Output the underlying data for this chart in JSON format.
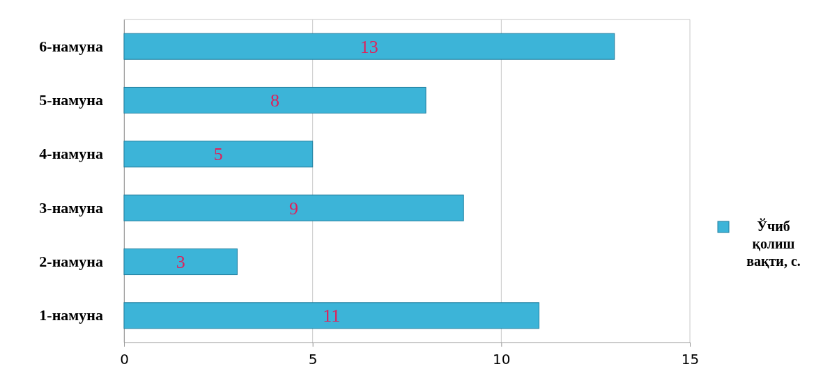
{
  "chart_data": {
    "type": "bar",
    "orientation": "horizontal",
    "categories": [
      "6-намуна",
      "5-намуна",
      "4-намуна",
      "3-намуна",
      "2-намуна",
      "1-намуна"
    ],
    "series": [
      {
        "name": "Ўчиб қолиш вақти, с.",
        "color": "#3cb4d8",
        "values": [
          13,
          8,
          5,
          9,
          3,
          11
        ]
      }
    ],
    "xlim": [
      0,
      15
    ],
    "xticks": [
      0,
      5,
      10,
      15
    ],
    "grid": "x",
    "legend": "right",
    "data_labels": true
  }
}
